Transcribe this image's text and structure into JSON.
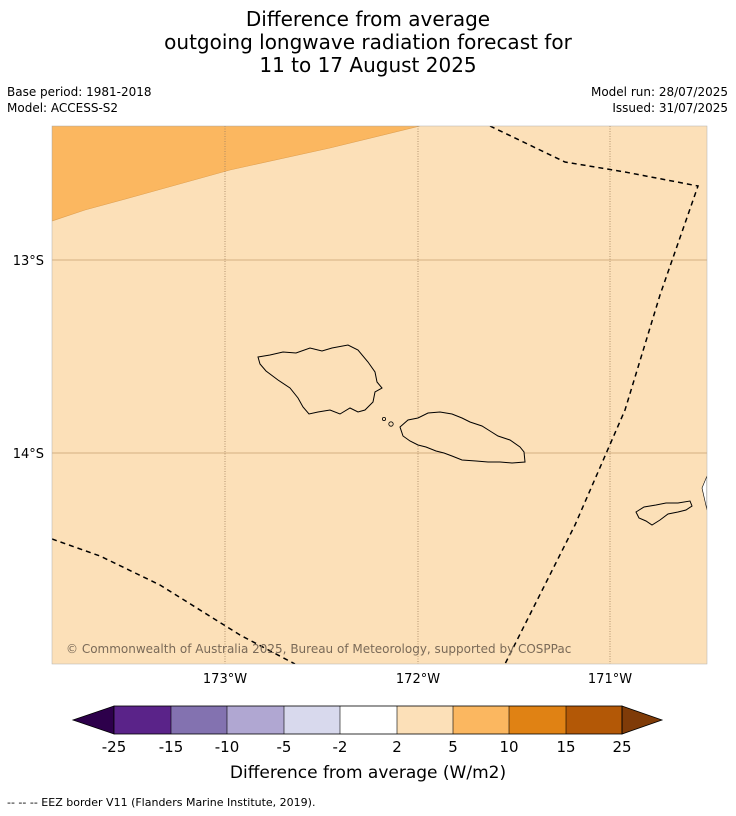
{
  "title": {
    "line1": "Difference from average",
    "line2": "outgoing longwave radiation forecast for",
    "line3": "11 to 17 August 2025"
  },
  "meta": {
    "base_period": "Base period: 1981-2018",
    "model": "Model: ACCESS-S2",
    "model_run": "Model run: 28/07/2025",
    "issued": "Issued: 31/07/2025"
  },
  "map": {
    "region": "Samoa",
    "lat_ticks": [
      "13°S",
      "14°S"
    ],
    "lon_ticks": [
      "173°W",
      "172°W",
      "171°W"
    ],
    "copyright": "© Commonwealth of Australia 2025, Bureau of Meteorology, supported by COSPPac",
    "colors": {
      "background_category": "#fce0b8",
      "northwest_category": "#fbb760",
      "grid": "#c8a070",
      "border": "#000000"
    },
    "field": [
      {
        "area": "most of the map",
        "category": "2 to 5"
      },
      {
        "area": "north-west corner",
        "category": "5 to 10"
      }
    ]
  },
  "colorbar": {
    "label": "Difference from average (W/m2)",
    "ticks": [
      "-25",
      "-15",
      "-10",
      "-5",
      "-2",
      "2",
      "5",
      "10",
      "15",
      "25"
    ],
    "extend_low_color": "#2d004b",
    "extend_high_color": "#7f3b08",
    "colors": [
      "#5a2389",
      "#8372b0",
      "#b0a7d2",
      "#d8d9ed",
      "#ffffff",
      "#fce0b8",
      "#fbb760",
      "#e08214",
      "#b35806"
    ]
  },
  "footnote": "--  --  -- EEZ border V11 (Flanders Marine Institute, 2019)."
}
